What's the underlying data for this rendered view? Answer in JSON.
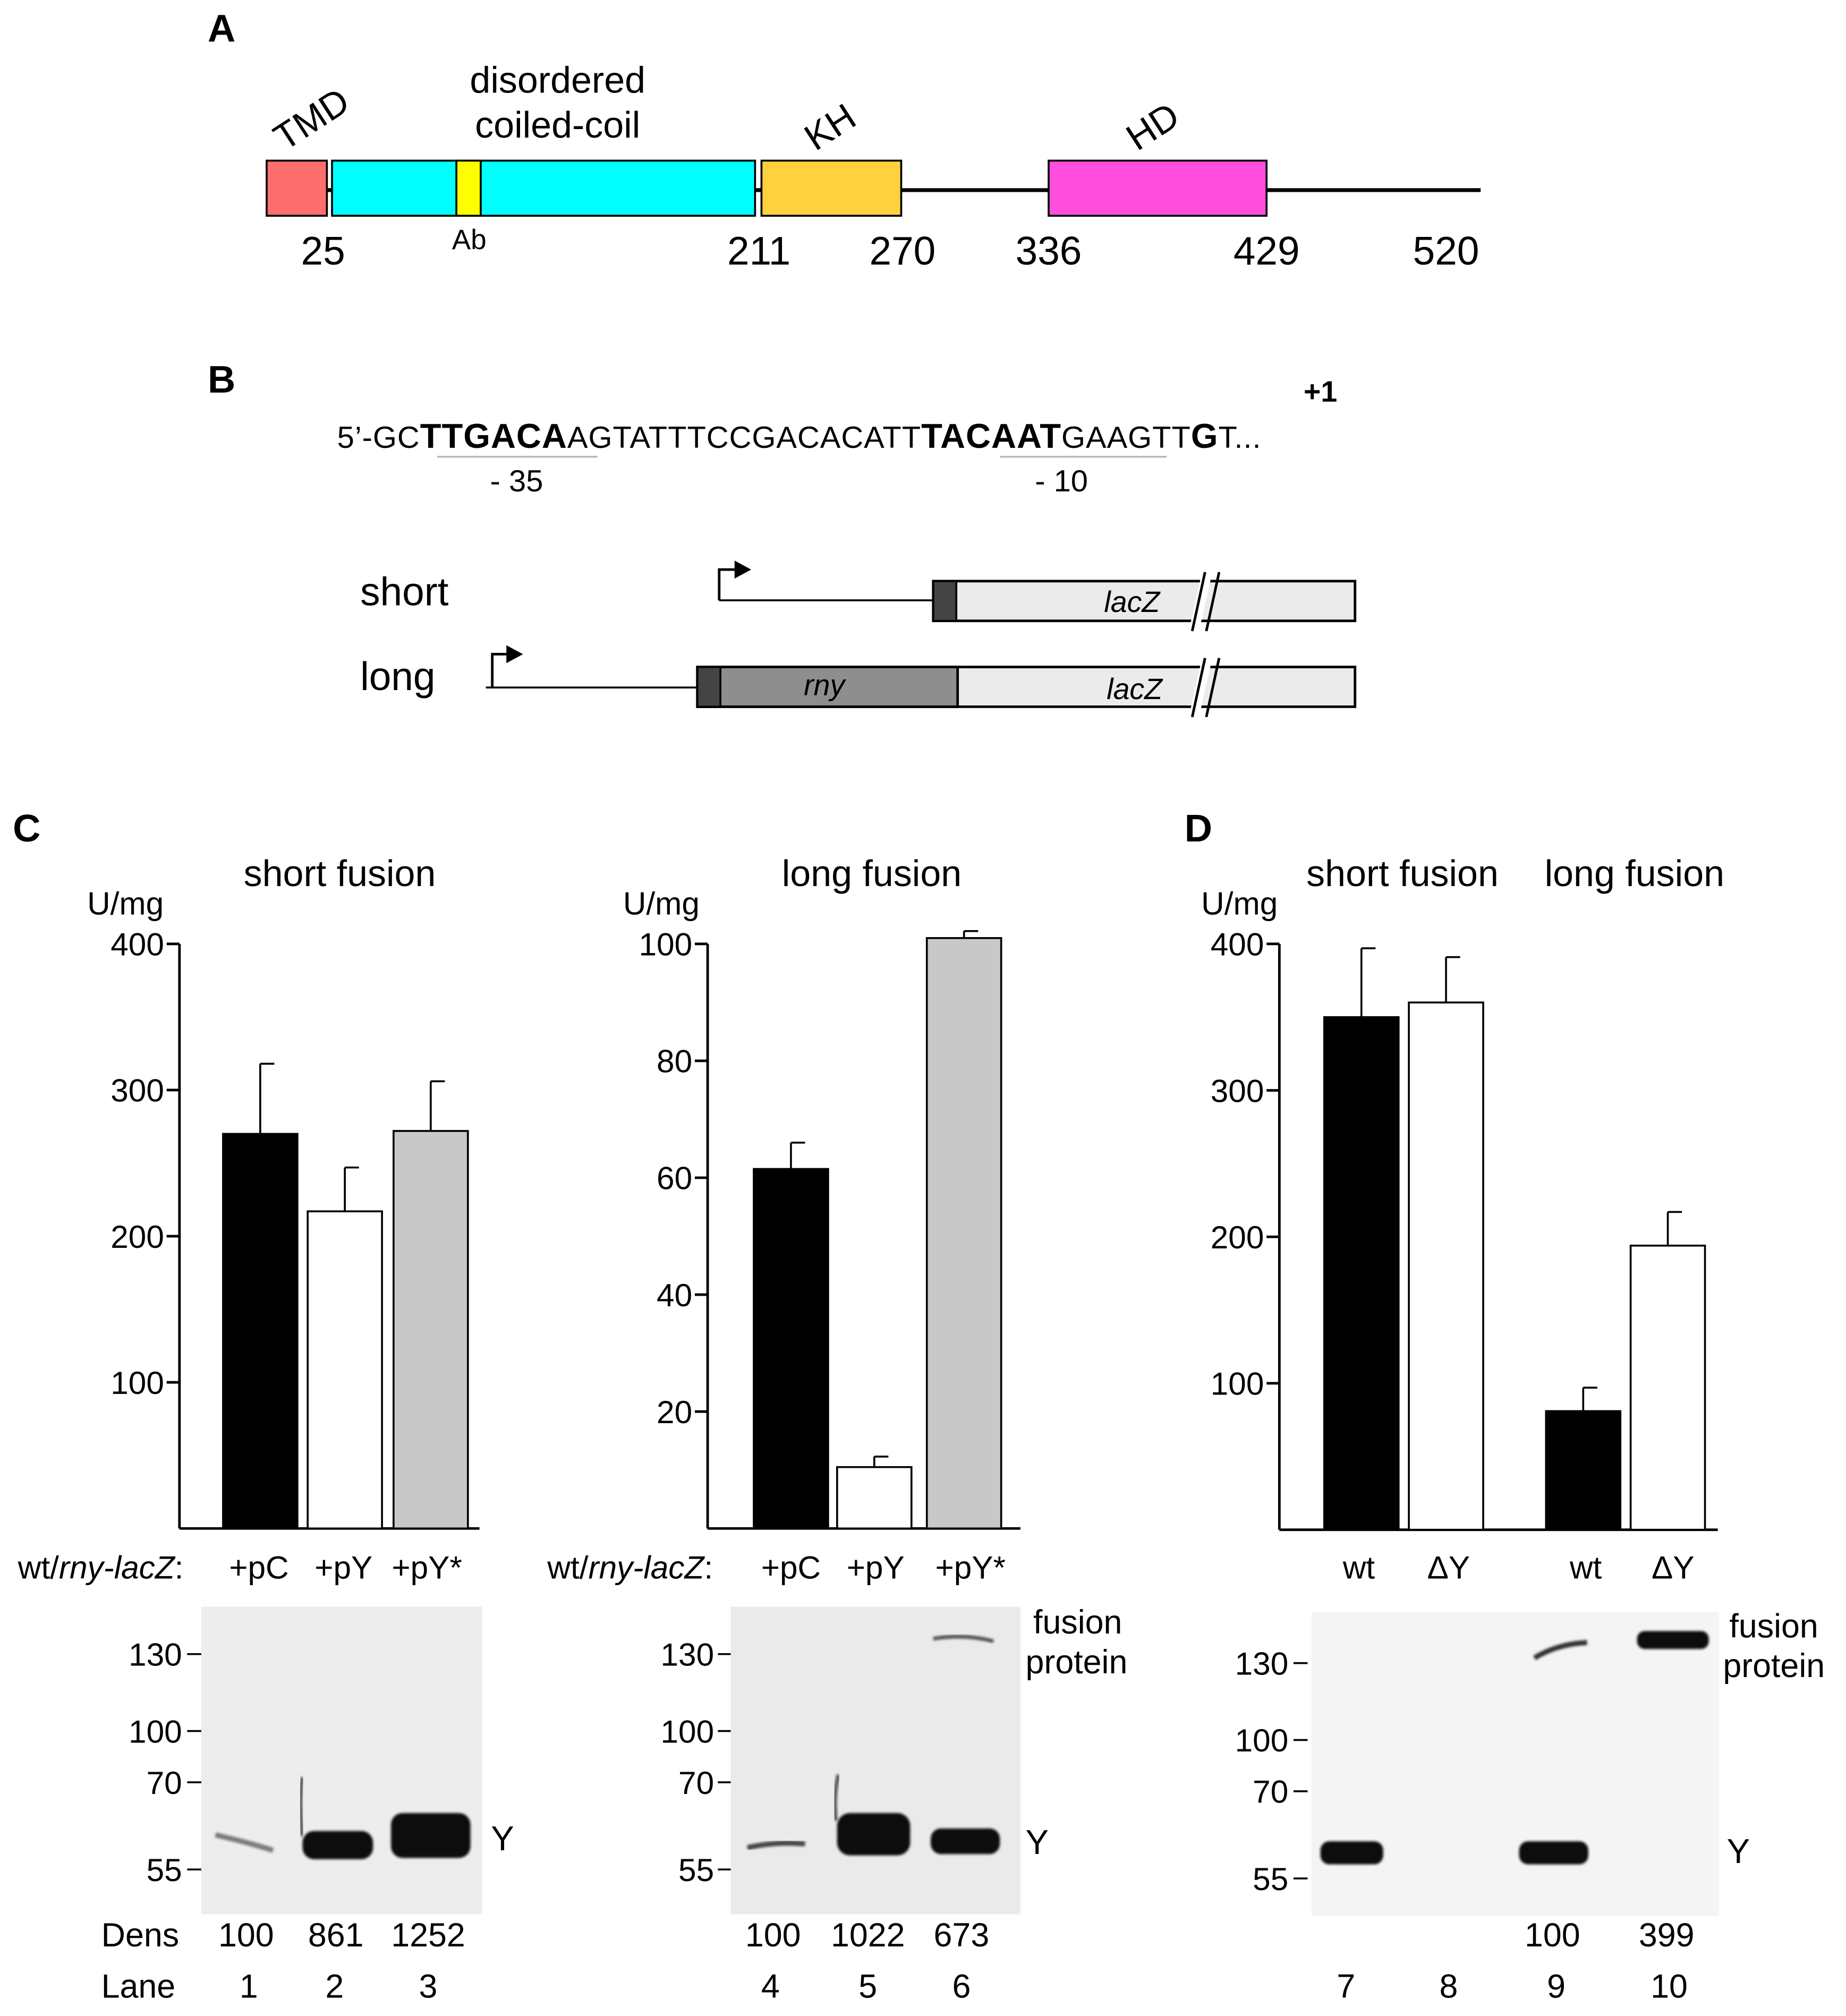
{
  "panels": {
    "A": "A",
    "B": "B",
    "C": "C",
    "D": "D"
  },
  "panel_a": {
    "domains": [
      {
        "label": "TMD",
        "color": "#ff6e6e"
      },
      {
        "label": "disordered",
        "label2": "coiled-coil",
        "color": "#00ffff"
      },
      {
        "label": "KH",
        "color": "#ffd13f"
      },
      {
        "label": "HD",
        "color": "#ff4edc"
      }
    ],
    "ab_label": "Ab",
    "ab_color": "#ffff00",
    "positions": [
      "25",
      "211",
      "270",
      "336",
      "429",
      "520"
    ]
  },
  "panel_b": {
    "seq": [
      "5’-GC",
      "TTGACA",
      "AGTATTTCCGACACATT",
      "TACAAT",
      "GAAGTT",
      "G",
      "T..."
    ],
    "minus35": "- 35",
    "minus10": "- 10",
    "plus1": "+1",
    "short_label": "short",
    "long_label": "long",
    "lacz": "lacZ",
    "rny": "rny"
  },
  "panel_c": {
    "short_title": "short fusion",
    "long_title": "long fusion",
    "ylabel": "U/mg",
    "strain_prefix": "wt/",
    "strain_italic": "rny-lacZ",
    "strain_suffix": ":",
    "mw_markers": [
      "130",
      "100",
      "70",
      "55"
    ],
    "fusion_label1": "fusion",
    "fusion_label2": "protein",
    "y_label": "Y",
    "dens_label": "Dens",
    "lane_label": "Lane",
    "dens_short": [
      "100",
      "861",
      "1252"
    ],
    "dens_long": [
      "100",
      "1022",
      "673"
    ],
    "lanes_short": [
      "1",
      "2",
      "3"
    ],
    "lanes_long": [
      "4",
      "5",
      "6"
    ]
  },
  "panel_d": {
    "title_short": "short fusion",
    "title_long": "long fusion",
    "ylabel": "U/mg",
    "mw_markers": [
      "130",
      "100",
      "70",
      "55"
    ],
    "fusion_label1": "fusion",
    "fusion_label2": "protein",
    "y_label": "Y",
    "dens": [
      "100",
      "399"
    ],
    "lanes": [
      "7",
      "8",
      "9",
      "10"
    ]
  },
  "chart_data": [
    {
      "type": "bar",
      "title": "short fusion",
      "ylabel": "U/mg",
      "ylim": [
        0,
        400
      ],
      "yticks": [
        "100",
        "200",
        "300",
        "400"
      ],
      "categories": [
        "+pC",
        "+pY",
        "+pY*"
      ],
      "values": [
        270,
        217,
        272
      ],
      "errors": [
        48,
        30,
        34
      ],
      "colors": [
        "#000000",
        "#ffffff",
        "#c8c8c8"
      ]
    },
    {
      "type": "bar",
      "title": "long fusion",
      "ylabel": "U/mg",
      "ylim": [
        0,
        100
      ],
      "yticks": [
        "20",
        "40",
        "60",
        "80",
        "100"
      ],
      "categories": [
        "+pC",
        "+pY",
        "+pY*"
      ],
      "values": [
        61.5,
        10.5,
        101
      ],
      "errors": [
        4.5,
        1.8,
        1.2
      ],
      "colors": [
        "#000000",
        "#ffffff",
        "#c8c8c8"
      ]
    },
    {
      "type": "bar",
      "title": "short fusion / long fusion",
      "ylabel": "U/mg",
      "ylim": [
        0,
        400
      ],
      "yticks": [
        "100",
        "200",
        "300",
        "400"
      ],
      "categories": [
        "wt",
        "ΔY",
        "wt",
        "ΔY"
      ],
      "values": [
        350,
        360,
        81,
        194
      ],
      "errors": [
        47,
        31,
        16,
        23
      ],
      "colors": [
        "#000000",
        "#ffffff",
        "#000000",
        "#ffffff"
      ]
    }
  ]
}
